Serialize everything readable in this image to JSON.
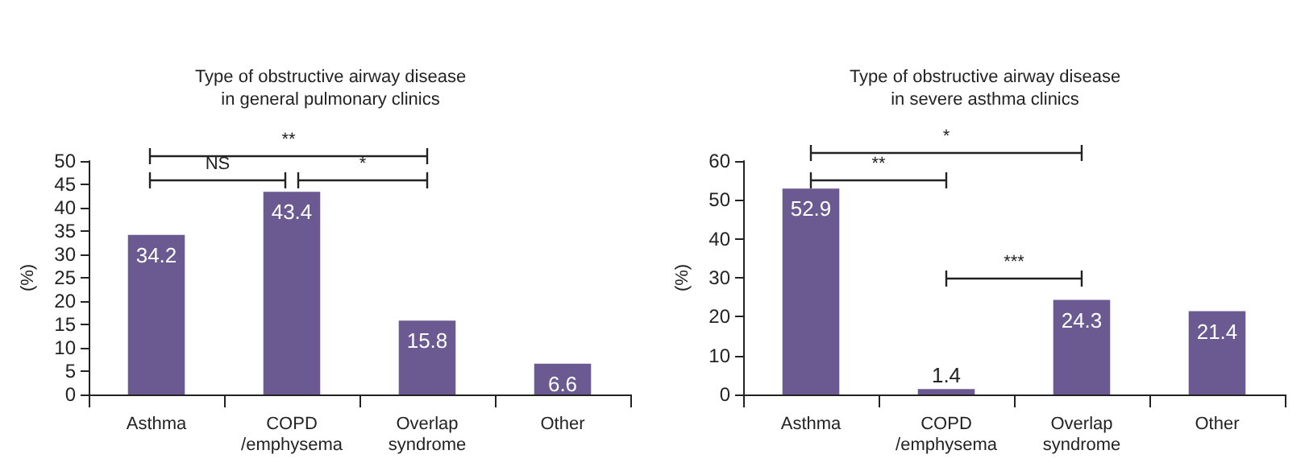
{
  "chart_data": [
    {
      "type": "bar",
      "title": "Type of obstructive airway disease\nin general pulmonary clinics",
      "ylabel": "(%)",
      "categories": [
        "Asthma",
        "COPD\n/emphysema",
        "Overlap\nsyndrome",
        "Other"
      ],
      "values": [
        34.2,
        43.4,
        15.8,
        6.6
      ],
      "color": "#6a5a91",
      "ylim": [
        0,
        50
      ],
      "yticks": [
        0,
        5,
        10,
        15,
        20,
        25,
        30,
        35,
        40,
        45,
        50
      ],
      "data_labels": true,
      "grid": false,
      "annotations": [
        "**",
        "NS",
        "*"
      ]
    },
    {
      "type": "bar",
      "title": "Type of obstructive airway disease\nin severe asthma clinics",
      "ylabel": "(%)",
      "categories": [
        "Asthma",
        "COPD\n/emphysema",
        "Overlap\nsyndrome",
        "Other"
      ],
      "values": [
        52.9,
        1.4,
        24.3,
        21.4
      ],
      "color": "#6a5a91",
      "ylim": [
        0,
        60
      ],
      "yticks": [
        0,
        10,
        20,
        30,
        40,
        50,
        60
      ],
      "data_labels": true,
      "grid": false,
      "annotations": [
        "*",
        "**",
        "***"
      ]
    }
  ]
}
